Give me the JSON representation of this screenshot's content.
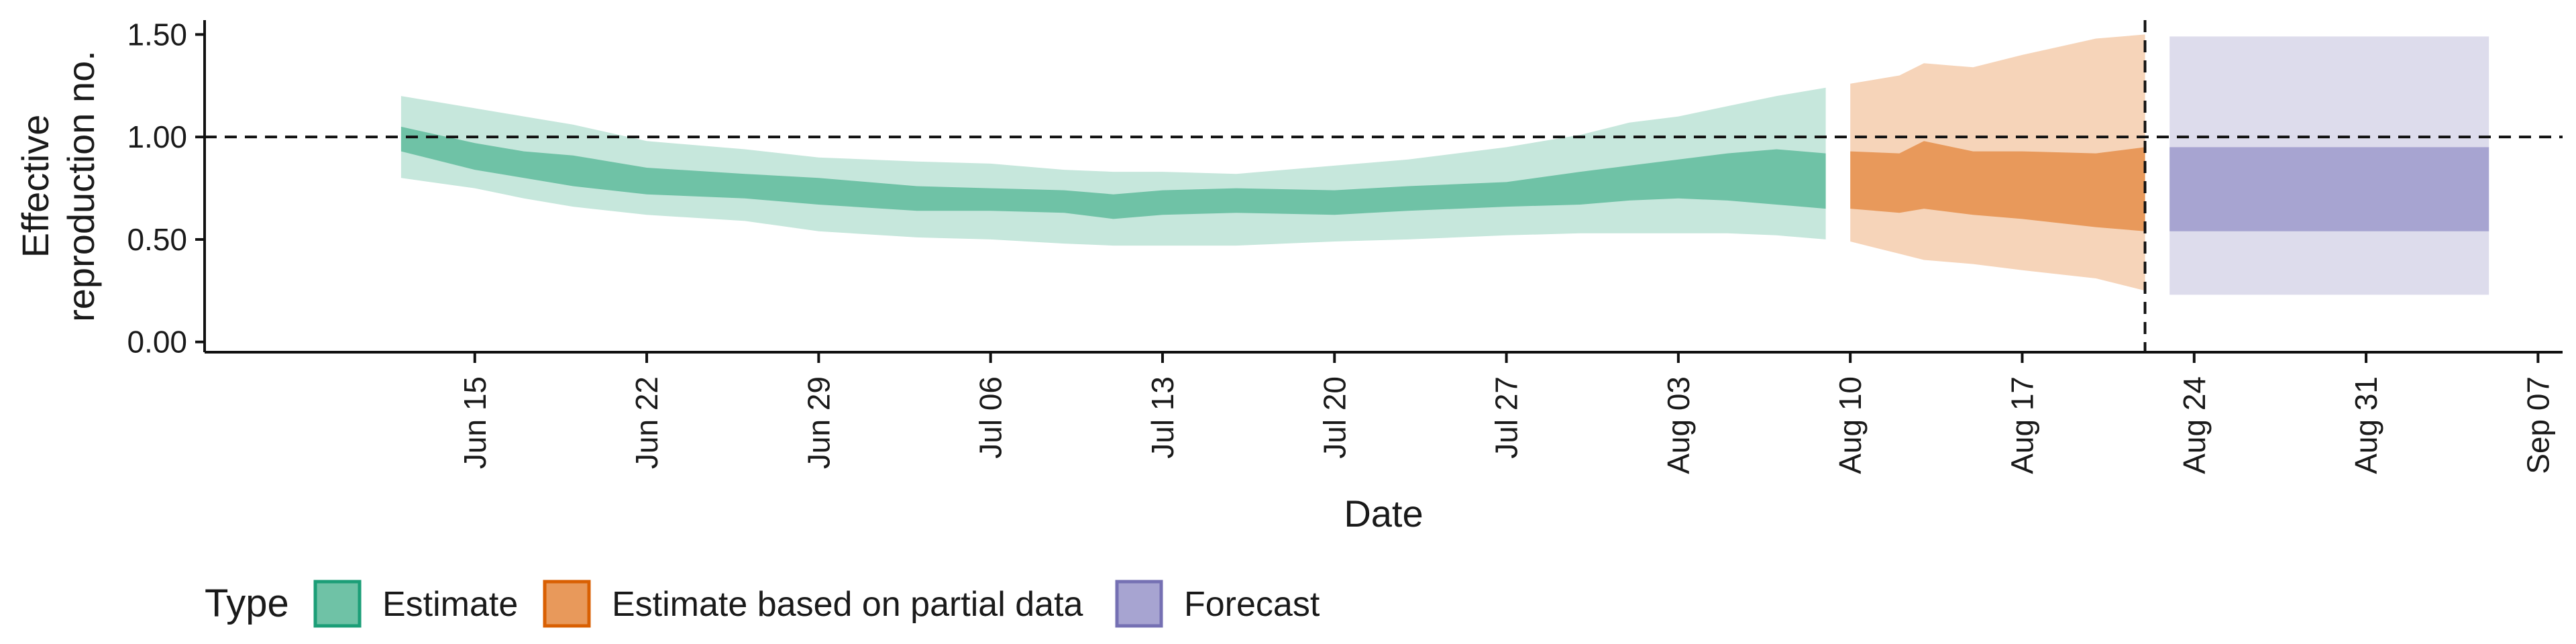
{
  "chart_data": {
    "type": "area",
    "title": "",
    "xlabel": "Date",
    "ylabel_lines": [
      "Effective",
      "reproduction no."
    ],
    "x_start_date": "2020-06-12",
    "xlim": [
      "2020-06-04",
      "2020-09-08"
    ],
    "ylim": [
      -0.05,
      1.57
    ],
    "y_ticks": [
      0.0,
      0.5,
      1.0,
      1.5
    ],
    "y_tick_labels": [
      "0.00",
      "0.50",
      "1.00",
      "1.50"
    ],
    "x_tick_dates": [
      "2020-06-15",
      "2020-06-22",
      "2020-06-29",
      "2020-07-06",
      "2020-07-13",
      "2020-07-20",
      "2020-07-27",
      "2020-08-03",
      "2020-08-10",
      "2020-08-17",
      "2020-08-24",
      "2020-08-31",
      "2020-09-07"
    ],
    "x_tick_labels": [
      "Jun 15",
      "Jun 22",
      "Jun 29",
      "Jul 06",
      "Jul 13",
      "Jul 20",
      "Jul 27",
      "Aug 03",
      "Aug 10",
      "Aug 17",
      "Aug 24",
      "Aug 31",
      "Sep 07"
    ],
    "reference_hline": 1.0,
    "reference_vline": "2020-08-22",
    "grid": false,
    "legend": {
      "title": "Type",
      "position": "bottom",
      "items": [
        {
          "label": "Estimate",
          "fill": "#6fc2a6",
          "border": "#1b9e77"
        },
        {
          "label": "Estimate based on partial data",
          "fill": "#e8995b",
          "border": "#d95f02"
        },
        {
          "label": "Forecast",
          "fill": "#a7a4d1",
          "border": "#7570b3"
        }
      ]
    },
    "series": [
      {
        "name": "Estimate",
        "inner_color": "#6fc2a6",
        "outer_color": "#c6e7dc",
        "x": [
          "2020-06-12",
          "2020-06-15",
          "2020-06-17",
          "2020-06-19",
          "2020-06-22",
          "2020-06-26",
          "2020-06-29",
          "2020-07-03",
          "2020-07-06",
          "2020-07-09",
          "2020-07-11",
          "2020-07-13",
          "2020-07-16",
          "2020-07-20",
          "2020-07-23",
          "2020-07-27",
          "2020-07-30",
          "2020-08-01",
          "2020-08-03",
          "2020-08-05",
          "2020-08-07",
          "2020-08-09"
        ],
        "outer_upper": [
          1.2,
          1.14,
          1.1,
          1.06,
          0.98,
          0.94,
          0.9,
          0.88,
          0.87,
          0.84,
          0.83,
          0.83,
          0.82,
          0.86,
          0.89,
          0.95,
          1.01,
          1.07,
          1.1,
          1.15,
          1.2,
          1.24
        ],
        "inner_upper": [
          1.05,
          0.97,
          0.93,
          0.91,
          0.85,
          0.82,
          0.8,
          0.76,
          0.75,
          0.74,
          0.72,
          0.74,
          0.75,
          0.74,
          0.76,
          0.78,
          0.83,
          0.86,
          0.89,
          0.92,
          0.94,
          0.92
        ],
        "inner_lower": [
          0.93,
          0.84,
          0.8,
          0.76,
          0.72,
          0.7,
          0.67,
          0.64,
          0.64,
          0.63,
          0.6,
          0.62,
          0.63,
          0.62,
          0.64,
          0.66,
          0.67,
          0.69,
          0.7,
          0.69,
          0.67,
          0.65
        ],
        "outer_lower": [
          0.8,
          0.75,
          0.7,
          0.66,
          0.62,
          0.59,
          0.54,
          0.51,
          0.5,
          0.48,
          0.47,
          0.47,
          0.47,
          0.49,
          0.5,
          0.52,
          0.53,
          0.53,
          0.53,
          0.53,
          0.52,
          0.5
        ]
      },
      {
        "name": "Estimate based on partial data",
        "inner_color": "#e8995b",
        "outer_color": "#f6d4b9",
        "x": [
          "2020-08-10",
          "2020-08-12",
          "2020-08-13",
          "2020-08-15",
          "2020-08-17",
          "2020-08-20",
          "2020-08-22"
        ],
        "outer_upper": [
          1.26,
          1.3,
          1.36,
          1.34,
          1.4,
          1.48,
          1.5
        ],
        "inner_upper": [
          0.93,
          0.92,
          0.98,
          0.93,
          0.93,
          0.92,
          0.95
        ],
        "inner_lower": [
          0.65,
          0.63,
          0.65,
          0.62,
          0.6,
          0.56,
          0.54
        ],
        "outer_lower": [
          0.49,
          0.43,
          0.4,
          0.38,
          0.35,
          0.31,
          0.25
        ]
      },
      {
        "name": "Forecast",
        "inner_color": "#a7a4d1",
        "outer_color": "#dddcec",
        "x": [
          "2020-08-23",
          "2020-09-05"
        ],
        "outer_upper": [
          1.49,
          1.49
        ],
        "inner_upper": [
          0.95,
          0.95
        ],
        "inner_lower": [
          0.54,
          0.54
        ],
        "outer_lower": [
          0.23,
          0.23
        ]
      }
    ]
  }
}
